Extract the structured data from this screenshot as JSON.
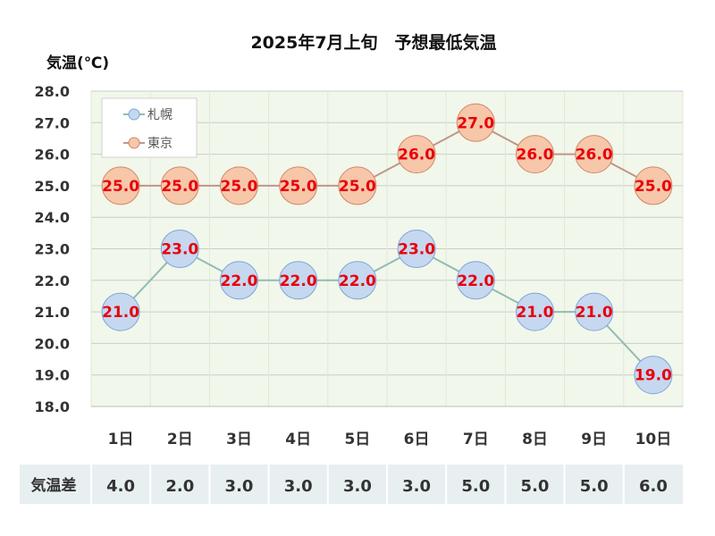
{
  "chart_data": {
    "type": "line",
    "title": "2025年7月上旬　予想最低気温",
    "ylabel": "気温(℃)",
    "xlabel": "",
    "ylim": [
      18.0,
      28.0
    ],
    "yticks": [
      "28.0",
      "27.0",
      "26.0",
      "25.0",
      "24.0",
      "23.0",
      "22.0",
      "21.0",
      "20.0",
      "19.0",
      "18.0"
    ],
    "categories": [
      "1日",
      "2日",
      "3日",
      "4日",
      "5日",
      "6日",
      "7日",
      "8日",
      "9日",
      "10日"
    ],
    "grid": true,
    "legend_position": "top-left",
    "series": [
      {
        "name": "札幌",
        "values": [
          21.0,
          23.0,
          22.0,
          22.0,
          22.0,
          23.0,
          22.0,
          21.0,
          21.0,
          19.0
        ],
        "labels": [
          "21.0",
          "23.0",
          "22.0",
          "22.0",
          "22.0",
          "23.0",
          "22.0",
          "21.0",
          "21.0",
          "19.0"
        ],
        "line_color": "#8fbcb4",
        "marker_fill": "#c5d8f0",
        "marker_stroke": "#7ea6d8"
      },
      {
        "name": "東京",
        "values": [
          25.0,
          25.0,
          25.0,
          25.0,
          25.0,
          26.0,
          27.0,
          26.0,
          26.0,
          25.0
        ],
        "labels": [
          "25.0",
          "25.0",
          "25.0",
          "25.0",
          "25.0",
          "26.0",
          "27.0",
          "26.0",
          "26.0",
          "25.0"
        ],
        "line_color": "#c0968a",
        "marker_fill": "#f6c7a9",
        "marker_stroke": "#d4866a"
      }
    ],
    "diff_table": {
      "label": "気温差",
      "values": [
        "4.0",
        "2.0",
        "3.0",
        "3.0",
        "3.0",
        "3.0",
        "5.0",
        "5.0",
        "5.0",
        "6.0"
      ]
    },
    "colors": {
      "plot_background": "#f1f7ea",
      "grid": "#cccccc",
      "label": "#e8000b",
      "table_background": "#e8eff0"
    }
  }
}
